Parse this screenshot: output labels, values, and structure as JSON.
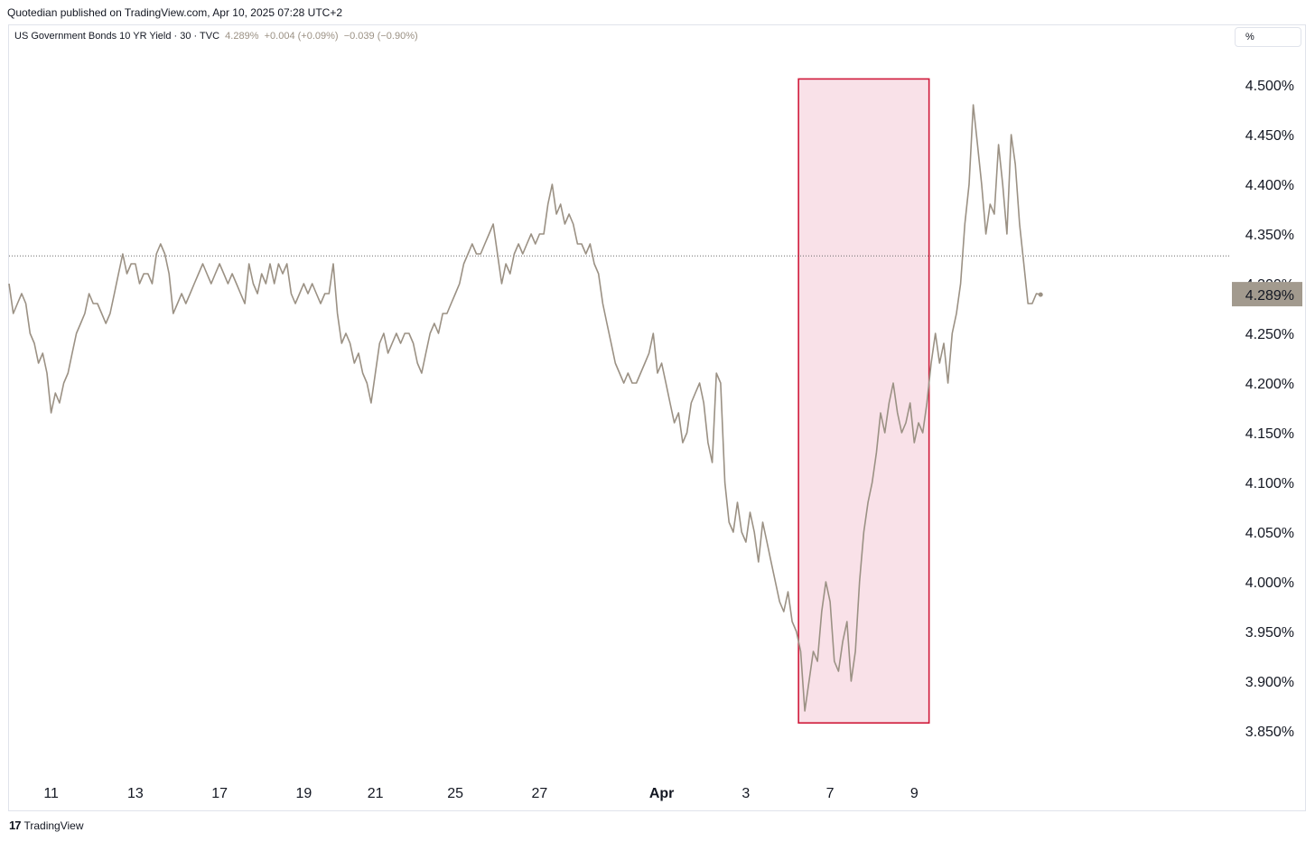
{
  "header": {
    "publisher": "Quotedian published on TradingView.com, Apr 10, 2025 07:28 UTC+2"
  },
  "legend": {
    "symbol": "US Government Bonds 10 YR Yield · 30 · TVC",
    "last": "4.289%",
    "change": "+0.004 (+0.09%)",
    "change2": "−0.039 (−0.90%)"
  },
  "unit_selector": "%",
  "footer": {
    "brand": "TradingView",
    "logo": "17"
  },
  "colors": {
    "line": "#9b9184",
    "highlight_border": "#d01a3a",
    "highlight_fill": "#f9e1e8",
    "price_label_bg": "#a29a8e"
  },
  "chart_data": {
    "type": "line",
    "title": "",
    "xlabel": "",
    "ylabel": "",
    "ylim": [
      3.83,
      4.52
    ],
    "y_ticks": [
      "4.500%",
      "4.450%",
      "4.400%",
      "4.350%",
      "4.300%",
      "4.250%",
      "4.200%",
      "4.150%",
      "4.100%",
      "4.050%",
      "4.000%",
      "3.950%",
      "3.900%",
      "3.850%"
    ],
    "x_ticks": [
      {
        "label": "11",
        "bar": 10
      },
      {
        "label": "13",
        "bar": 30
      },
      {
        "label": "17",
        "bar": 50
      },
      {
        "label": "19",
        "bar": 70
      },
      {
        "label": "21",
        "bar": 87
      },
      {
        "label": "25",
        "bar": 106
      },
      {
        "label": "27",
        "bar": 126
      },
      {
        "label": "Apr",
        "bar": 155,
        "bold": true
      },
      {
        "label": "3",
        "bar": 175
      },
      {
        "label": "7",
        "bar": 195
      },
      {
        "label": "9",
        "bar": 215
      }
    ],
    "x_range": [
      0,
      290
    ],
    "reference_line": 4.328,
    "last_price": 4.289,
    "last_price_label": "4.289%",
    "highlight": {
      "x_from": 187.5,
      "x_to": 218.5,
      "y_from": 3.858,
      "y_to": 4.506
    },
    "series": [
      {
        "points": [
          [
            0,
            4.3
          ],
          [
            1,
            4.27
          ],
          [
            2,
            4.28
          ],
          [
            3,
            4.29
          ],
          [
            4,
            4.28
          ],
          [
            5,
            4.25
          ],
          [
            6,
            4.24
          ],
          [
            7,
            4.22
          ],
          [
            8,
            4.23
          ],
          [
            9,
            4.21
          ],
          [
            10,
            4.17
          ],
          [
            11,
            4.19
          ],
          [
            12,
            4.18
          ],
          [
            13,
            4.2
          ],
          [
            14,
            4.21
          ],
          [
            15,
            4.23
          ],
          [
            16,
            4.25
          ],
          [
            17,
            4.26
          ],
          [
            18,
            4.27
          ],
          [
            19,
            4.29
          ],
          [
            20,
            4.28
          ],
          [
            21,
            4.28
          ],
          [
            22,
            4.27
          ],
          [
            23,
            4.26
          ],
          [
            24,
            4.27
          ],
          [
            25,
            4.29
          ],
          [
            26,
            4.31
          ],
          [
            27,
            4.33
          ],
          [
            28,
            4.31
          ],
          [
            29,
            4.32
          ],
          [
            30,
            4.32
          ],
          [
            31,
            4.3
          ],
          [
            32,
            4.31
          ],
          [
            33,
            4.31
          ],
          [
            34,
            4.3
          ],
          [
            35,
            4.33
          ],
          [
            36,
            4.34
          ],
          [
            37,
            4.33
          ],
          [
            38,
            4.31
          ],
          [
            39,
            4.27
          ],
          [
            40,
            4.28
          ],
          [
            41,
            4.29
          ],
          [
            42,
            4.28
          ],
          [
            43,
            4.29
          ],
          [
            44,
            4.3
          ],
          [
            45,
            4.31
          ],
          [
            46,
            4.32
          ],
          [
            47,
            4.31
          ],
          [
            48,
            4.3
          ],
          [
            49,
            4.31
          ],
          [
            50,
            4.32
          ],
          [
            51,
            4.31
          ],
          [
            52,
            4.3
          ],
          [
            53,
            4.31
          ],
          [
            54,
            4.3
          ],
          [
            55,
            4.29
          ],
          [
            56,
            4.28
          ],
          [
            57,
            4.32
          ],
          [
            58,
            4.3
          ],
          [
            59,
            4.29
          ],
          [
            60,
            4.31
          ],
          [
            61,
            4.3
          ],
          [
            62,
            4.32
          ],
          [
            63,
            4.3
          ],
          [
            64,
            4.32
          ],
          [
            65,
            4.31
          ],
          [
            66,
            4.32
          ],
          [
            67,
            4.29
          ],
          [
            68,
            4.28
          ],
          [
            69,
            4.29
          ],
          [
            70,
            4.3
          ],
          [
            71,
            4.29
          ],
          [
            72,
            4.3
          ],
          [
            73,
            4.29
          ],
          [
            74,
            4.28
          ],
          [
            75,
            4.29
          ],
          [
            76,
            4.29
          ],
          [
            77,
            4.32
          ],
          [
            78,
            4.27
          ],
          [
            79,
            4.24
          ],
          [
            80,
            4.25
          ],
          [
            81,
            4.24
          ],
          [
            82,
            4.22
          ],
          [
            83,
            4.23
          ],
          [
            84,
            4.21
          ],
          [
            85,
            4.2
          ],
          [
            86,
            4.18
          ],
          [
            87,
            4.21
          ],
          [
            88,
            4.24
          ],
          [
            89,
            4.25
          ],
          [
            90,
            4.23
          ],
          [
            91,
            4.24
          ],
          [
            92,
            4.25
          ],
          [
            93,
            4.24
          ],
          [
            94,
            4.25
          ],
          [
            95,
            4.25
          ],
          [
            96,
            4.24
          ],
          [
            97,
            4.22
          ],
          [
            98,
            4.21
          ],
          [
            99,
            4.23
          ],
          [
            100,
            4.25
          ],
          [
            101,
            4.26
          ],
          [
            102,
            4.25
          ],
          [
            103,
            4.27
          ],
          [
            104,
            4.27
          ],
          [
            105,
            4.28
          ],
          [
            106,
            4.29
          ],
          [
            107,
            4.3
          ],
          [
            108,
            4.32
          ],
          [
            109,
            4.33
          ],
          [
            110,
            4.34
          ],
          [
            111,
            4.33
          ],
          [
            112,
            4.33
          ],
          [
            113,
            4.34
          ],
          [
            114,
            4.35
          ],
          [
            115,
            4.36
          ],
          [
            116,
            4.33
          ],
          [
            117,
            4.3
          ],
          [
            118,
            4.32
          ],
          [
            119,
            4.31
          ],
          [
            120,
            4.33
          ],
          [
            121,
            4.34
          ],
          [
            122,
            4.33
          ],
          [
            123,
            4.34
          ],
          [
            124,
            4.35
          ],
          [
            125,
            4.34
          ],
          [
            126,
            4.35
          ],
          [
            127,
            4.35
          ],
          [
            128,
            4.38
          ],
          [
            129,
            4.4
          ],
          [
            130,
            4.37
          ],
          [
            131,
            4.38
          ],
          [
            132,
            4.36
          ],
          [
            133,
            4.37
          ],
          [
            134,
            4.36
          ],
          [
            135,
            4.34
          ],
          [
            136,
            4.34
          ],
          [
            137,
            4.33
          ],
          [
            138,
            4.34
          ],
          [
            139,
            4.32
          ],
          [
            140,
            4.31
          ],
          [
            141,
            4.28
          ],
          [
            142,
            4.26
          ],
          [
            143,
            4.24
          ],
          [
            144,
            4.22
          ],
          [
            145,
            4.21
          ],
          [
            146,
            4.2
          ],
          [
            147,
            4.21
          ],
          [
            148,
            4.2
          ],
          [
            149,
            4.2
          ],
          [
            150,
            4.21
          ],
          [
            151,
            4.22
          ],
          [
            152,
            4.23
          ],
          [
            153,
            4.25
          ],
          [
            154,
            4.21
          ],
          [
            155,
            4.22
          ],
          [
            156,
            4.2
          ],
          [
            157,
            4.18
          ],
          [
            158,
            4.16
          ],
          [
            159,
            4.17
          ],
          [
            160,
            4.14
          ],
          [
            161,
            4.15
          ],
          [
            162,
            4.18
          ],
          [
            163,
            4.19
          ],
          [
            164,
            4.2
          ],
          [
            165,
            4.18
          ],
          [
            166,
            4.14
          ],
          [
            167,
            4.12
          ],
          [
            168,
            4.21
          ],
          [
            169,
            4.2
          ],
          [
            170,
            4.1
          ],
          [
            171,
            4.06
          ],
          [
            172,
            4.05
          ],
          [
            173,
            4.08
          ],
          [
            174,
            4.05
          ],
          [
            175,
            4.04
          ],
          [
            176,
            4.07
          ],
          [
            177,
            4.05
          ],
          [
            178,
            4.02
          ],
          [
            179,
            4.06
          ],
          [
            180,
            4.04
          ],
          [
            181,
            4.02
          ],
          [
            182,
            4.0
          ],
          [
            183,
            3.98
          ],
          [
            184,
            3.97
          ],
          [
            185,
            3.99
          ],
          [
            186,
            3.96
          ],
          [
            187,
            3.95
          ],
          [
            188,
            3.93
          ],
          [
            189,
            3.87
          ],
          [
            190,
            3.9
          ],
          [
            191,
            3.93
          ],
          [
            192,
            3.92
          ],
          [
            193,
            3.97
          ],
          [
            194,
            4.0
          ],
          [
            195,
            3.98
          ],
          [
            196,
            3.92
          ],
          [
            197,
            3.91
          ],
          [
            198,
            3.94
          ],
          [
            199,
            3.96
          ],
          [
            200,
            3.9
          ],
          [
            201,
            3.93
          ],
          [
            202,
            4.0
          ],
          [
            203,
            4.05
          ],
          [
            204,
            4.08
          ],
          [
            205,
            4.1
          ],
          [
            206,
            4.13
          ],
          [
            207,
            4.17
          ],
          [
            208,
            4.15
          ],
          [
            209,
            4.18
          ],
          [
            210,
            4.2
          ],
          [
            211,
            4.17
          ],
          [
            212,
            4.15
          ],
          [
            213,
            4.16
          ],
          [
            214,
            4.18
          ],
          [
            215,
            4.14
          ],
          [
            216,
            4.16
          ],
          [
            217,
            4.15
          ],
          [
            218,
            4.18
          ],
          [
            219,
            4.22
          ],
          [
            220,
            4.25
          ],
          [
            221,
            4.22
          ],
          [
            222,
            4.24
          ],
          [
            223,
            4.2
          ],
          [
            224,
            4.25
          ],
          [
            225,
            4.27
          ],
          [
            226,
            4.3
          ],
          [
            227,
            4.36
          ],
          [
            228,
            4.4
          ],
          [
            229,
            4.48
          ],
          [
            230,
            4.44
          ],
          [
            231,
            4.4
          ],
          [
            232,
            4.35
          ],
          [
            233,
            4.38
          ],
          [
            234,
            4.37
          ],
          [
            235,
            4.44
          ],
          [
            236,
            4.4
          ],
          [
            237,
            4.35
          ],
          [
            238,
            4.45
          ],
          [
            239,
            4.42
          ],
          [
            240,
            4.36
          ],
          [
            241,
            4.32
          ],
          [
            242,
            4.28
          ],
          [
            243,
            4.28
          ],
          [
            244,
            4.29
          ],
          [
            245,
            4.289
          ]
        ]
      }
    ]
  }
}
